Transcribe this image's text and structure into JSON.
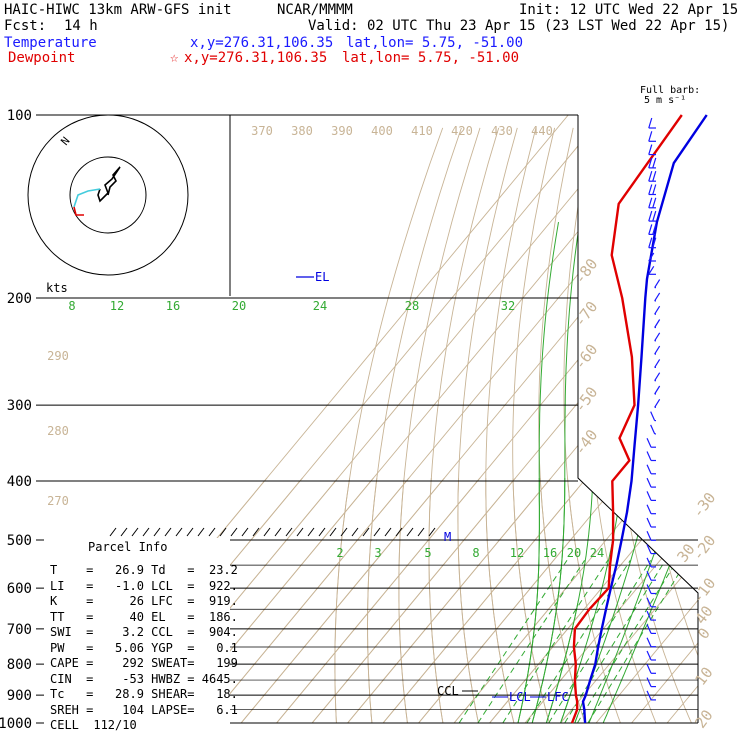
{
  "header": {
    "model_title": "HAIC-HIWC 13km ARW-GFS init",
    "org": "NCAR/MMMM",
    "init": "Init: 12 UTC Wed 22 Apr 15",
    "fcst_label": "Fcst:",
    "fcst_value": "14 h",
    "valid": "Valid: 02 UTC Thu 23 Apr 15 (23 LST Wed 22 Apr 15)",
    "temperature_label": "Temperature",
    "temperature_xy": "x,y=276.31,106.35",
    "temperature_latlon": "lat,lon= 5.75, -51.00",
    "dewpoint_label": "Dewpoint",
    "dewpoint_xy": "x,y=276.31,106.35",
    "dewpoint_latlon": "lat,lon= 5.75, -51.00",
    "barb_legend_1": "Full barb:",
    "barb_legend_2": "5 m s⁻¹"
  },
  "colors": {
    "temperature": "#0000e0",
    "dewpoint": "#e00000",
    "isotherm": "#c8b496",
    "dry_adiabat": "#c8b496",
    "moist_adiabat": "#33aa33",
    "mixing_ratio": "#33aa33",
    "hodo_upper": "#000000",
    "hodo_mid": "#44ccdd",
    "hodo_low": "#e00000"
  },
  "chart_data": {
    "type": "line",
    "subtype": "skew-T log-P sounding",
    "pressure_levels": [
      100,
      200,
      300,
      400,
      500,
      600,
      700,
      800,
      900,
      1000
    ],
    "pressure_labels": [
      "100",
      "200",
      "300",
      "400",
      "500",
      "600",
      "700",
      "800",
      "900",
      "1000"
    ],
    "series": [
      {
        "name": "Temperature",
        "color": "#0000e0",
        "points": [
          {
            "p": 1000,
            "t": 26.9
          },
          {
            "p": 950,
            "t": 23.5
          },
          {
            "p": 922,
            "t": 21.3
          },
          {
            "p": 900,
            "t": 20.6
          },
          {
            "p": 850,
            "t": 18.3
          },
          {
            "p": 800,
            "t": 16.0
          },
          {
            "p": 750,
            "t": 12.8
          },
          {
            "p": 700,
            "t": 9.6
          },
          {
            "p": 650,
            "t": 6.2
          },
          {
            "p": 600,
            "t": 2.6
          },
          {
            "p": 550,
            "t": -1.2
          },
          {
            "p": 500,
            "t": -5.6
          },
          {
            "p": 450,
            "t": -10.6
          },
          {
            "p": 400,
            "t": -16.6
          },
          {
            "p": 350,
            "t": -24.0
          },
          {
            "p": 300,
            "t": -32.5
          },
          {
            "p": 250,
            "t": -42.8
          },
          {
            "p": 200,
            "t": -55.5
          },
          {
            "p": 186,
            "t": -59.5
          },
          {
            "p": 150,
            "t": -70.0
          },
          {
            "p": 120,
            "t": -79.0
          },
          {
            "p": 100,
            "t": -81.0
          }
        ]
      },
      {
        "name": "Dewpoint",
        "color": "#e00000",
        "points": [
          {
            "p": 1000,
            "t": 23.2
          },
          {
            "p": 950,
            "t": 21.5
          },
          {
            "p": 920,
            "t": 19.5
          },
          {
            "p": 900,
            "t": 17.8
          },
          {
            "p": 850,
            "t": 14.0
          },
          {
            "p": 800,
            "t": 10.5
          },
          {
            "p": 750,
            "t": 6.0
          },
          {
            "p": 700,
            "t": 2.0
          },
          {
            "p": 650,
            "t": 1.5
          },
          {
            "p": 600,
            "t": 2.0
          },
          {
            "p": 550,
            "t": -3.0
          },
          {
            "p": 500,
            "t": -8.0
          },
          {
            "p": 450,
            "t": -14.5
          },
          {
            "p": 400,
            "t": -22.0
          },
          {
            "p": 370,
            "t": -22.0
          },
          {
            "p": 340,
            "t": -30.0
          },
          {
            "p": 300,
            "t": -33.5
          },
          {
            "p": 250,
            "t": -45.5
          },
          {
            "p": 200,
            "t": -62.0
          },
          {
            "p": 170,
            "t": -75.0
          },
          {
            "p": 140,
            "t": -85.0
          },
          {
            "p": 100,
            "t": -88.0
          }
        ]
      }
    ],
    "isotherm_labels": [
      "-80",
      "-70",
      "-60",
      "-50",
      "-40",
      "-30",
      "-20",
      "-10",
      "0",
      "10",
      "20",
      "30",
      "40"
    ],
    "isotherm_values": [
      -80,
      -70,
      -60,
      -50,
      -40,
      -30,
      -20,
      -10,
      0,
      10,
      20,
      30,
      40
    ],
    "theta_e_labels": [
      "370",
      "380",
      "390",
      "400",
      "410",
      "420",
      "430",
      "440"
    ],
    "dry_adiabat_labels": [
      "290",
      "280",
      "270"
    ],
    "moist_adiabat_labels": [
      "8",
      "12",
      "16",
      "20",
      "24",
      "28",
      "32"
    ],
    "mixing_ratio_labels": [
      "2",
      "3",
      "5",
      "8",
      "12",
      "16",
      "20",
      "24"
    ],
    "annotations": {
      "el": "EL",
      "m": "M",
      "ccl": "CCL",
      "lcl": "LCL",
      "lfc": "LFC",
      "hodo_kts": "kts",
      "hodo_n": "N"
    },
    "hodograph": {
      "segments": [
        {
          "color": "#000000",
          "points": [
            [
              0,
              0
            ],
            [
              2,
              -8
            ],
            [
              8,
              -14
            ],
            [
              5,
              -20
            ],
            [
              12,
              -28
            ],
            [
              4,
              -16
            ],
            [
              -3,
              -10
            ],
            [
              0,
              -2
            ],
            [
              -8,
              6
            ],
            [
              -10,
              0
            ],
            [
              -8,
              -6
            ]
          ]
        },
        {
          "color": "#44ccdd",
          "points": [
            [
              -8,
              -6
            ],
            [
              -20,
              -4
            ],
            [
              -30,
              0
            ],
            [
              -34,
              12
            ]
          ]
        },
        {
          "color": "#e00000",
          "points": [
            [
              -34,
              12
            ],
            [
              -32,
              20
            ],
            [
              -24,
              20
            ]
          ]
        }
      ]
    }
  },
  "parcel_info": {
    "title": "Parcel Info",
    "rows": [
      {
        "l1": "T",
        "v1": "26.9",
        "l2": "Td",
        "v2": "23.2"
      },
      {
        "l1": "LI",
        "v1": "-1.0",
        "l2": "LCL",
        "v2": "922."
      },
      {
        "l1": "K",
        "v1": "26",
        "l2": "LFC",
        "v2": "919."
      },
      {
        "l1": "TT",
        "v1": "40",
        "l2": "EL",
        "v2": "186."
      },
      {
        "l1": "SWI",
        "v1": "3.2",
        "l2": "CCL",
        "v2": "904."
      },
      {
        "l1": "PW",
        "v1": "5.06",
        "l2": "YGP",
        "v2": "0.1"
      },
      {
        "l1": "CAPE",
        "v1": "292",
        "l2": "SWEAT",
        "v2": "199"
      },
      {
        "l1": "CIN",
        "v1": "-53",
        "l2": "HWBZ",
        "v2": "4645."
      },
      {
        "l1": "Tc",
        "v1": "28.9",
        "l2": "SHEAR",
        "v2": "18."
      },
      {
        "l1": "SREH",
        "v1": "104",
        "l2": "LAPSE",
        "v2": "6.1"
      },
      {
        "l1": "CELL",
        "v1": "112/10",
        "l2": "",
        "v2": ""
      }
    ]
  }
}
